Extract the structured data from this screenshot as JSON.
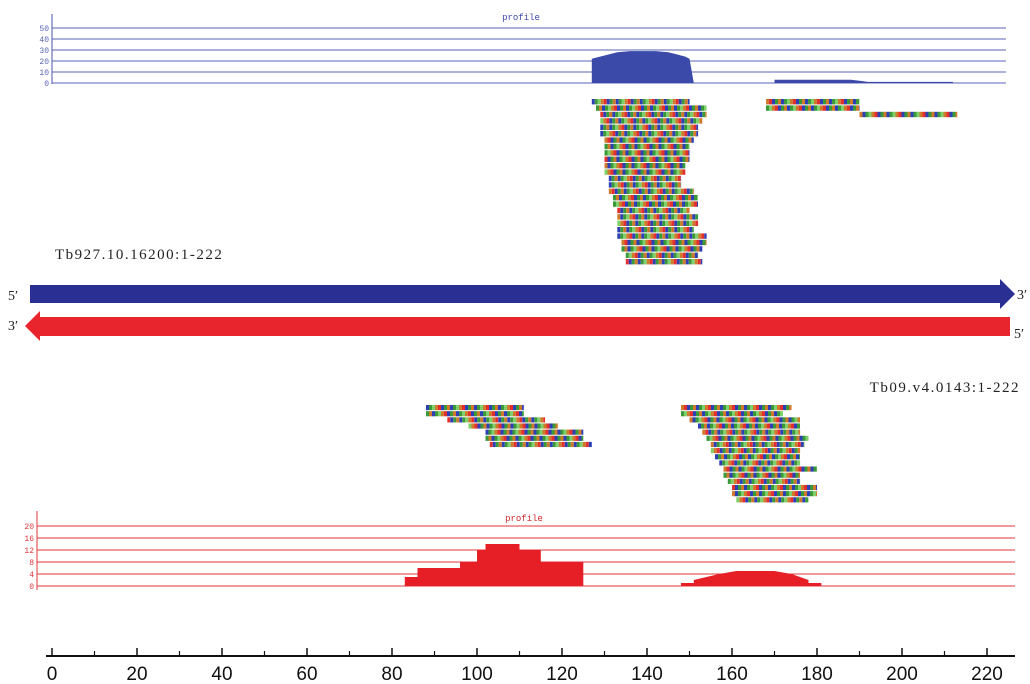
{
  "colors": {
    "forward": "#2a2f94",
    "reverse": "#e8252c",
    "profile_top_fill": "#3b4aa8",
    "profile_bottom_fill": "#e61e25",
    "base_a": "#3a9a3a",
    "base_c": "#2e3fb5",
    "base_g": "#cf7a2a",
    "base_t": "#e23030",
    "base_x": "#7fd06a"
  },
  "top_track": {
    "profile_label": "profile",
    "ticks": [
      "50",
      "40",
      "30",
      "20",
      "10",
      "0"
    ],
    "tick_values": [
      50,
      40,
      30,
      20,
      10,
      0
    ],
    "profile_points": [
      [
        127,
        0
      ],
      [
        127,
        22
      ],
      [
        130,
        25
      ],
      [
        133,
        28
      ],
      [
        136,
        29
      ],
      [
        139,
        29
      ],
      [
        142,
        29
      ],
      [
        145,
        28
      ],
      [
        147,
        26
      ],
      [
        149,
        24
      ],
      [
        150,
        22
      ],
      [
        151,
        0
      ],
      [
        151,
        0
      ],
      [
        170,
        0
      ],
      [
        170,
        3
      ],
      [
        188,
        3
      ],
      [
        190,
        2
      ],
      [
        192,
        1
      ],
      [
        212,
        1
      ],
      [
        212,
        0
      ]
    ],
    "reads": [
      {
        "start": 127,
        "end": 150,
        "row": 0
      },
      {
        "start": 168,
        "end": 190,
        "row": 0
      },
      {
        "start": 128,
        "end": 154,
        "row": 1
      },
      {
        "start": 168,
        "end": 190,
        "row": 1
      },
      {
        "start": 129,
        "end": 154,
        "row": 2
      },
      {
        "start": 190,
        "end": 213,
        "row": 2
      },
      {
        "start": 129,
        "end": 153,
        "row": 3
      },
      {
        "start": 129,
        "end": 152,
        "row": 4
      },
      {
        "start": 129,
        "end": 152,
        "row": 5
      },
      {
        "start": 130,
        "end": 151,
        "row": 6
      },
      {
        "start": 130,
        "end": 150,
        "row": 7
      },
      {
        "start": 130,
        "end": 150,
        "row": 8
      },
      {
        "start": 130,
        "end": 150,
        "row": 9
      },
      {
        "start": 130,
        "end": 149,
        "row": 10
      },
      {
        "start": 130,
        "end": 149,
        "row": 11
      },
      {
        "start": 131,
        "end": 148,
        "row": 12
      },
      {
        "start": 131,
        "end": 148,
        "row": 13
      },
      {
        "start": 131,
        "end": 151,
        "row": 14
      },
      {
        "start": 132,
        "end": 152,
        "row": 15
      },
      {
        "start": 132,
        "end": 152,
        "row": 16
      },
      {
        "start": 133,
        "end": 150,
        "row": 17
      },
      {
        "start": 133,
        "end": 152,
        "row": 18
      },
      {
        "start": 133,
        "end": 152,
        "row": 19
      },
      {
        "start": 133,
        "end": 151,
        "row": 20
      },
      {
        "start": 133,
        "end": 154,
        "row": 21
      },
      {
        "start": 134,
        "end": 154,
        "row": 22
      },
      {
        "start": 134,
        "end": 153,
        "row": 23
      },
      {
        "start": 135,
        "end": 152,
        "row": 24
      },
      {
        "start": 135,
        "end": 153,
        "row": 25
      }
    ]
  },
  "forward_gene": {
    "name": "Tb927.10.16200:1-222",
    "start_label": "5′",
    "end_label": "3′"
  },
  "reverse_gene": {
    "name": "Tb09.v4.0143:1-222",
    "start_label": "3′",
    "end_label": "5′"
  },
  "bottom_track": {
    "profile_label": "profile",
    "ticks": [
      "20",
      "16",
      "12",
      "8",
      "4",
      "0"
    ],
    "tick_values": [
      20,
      16,
      12,
      8,
      4,
      0
    ],
    "profile_points": [
      [
        83,
        0
      ],
      [
        83,
        3
      ],
      [
        86,
        3
      ],
      [
        86,
        6
      ],
      [
        96,
        6
      ],
      [
        96,
        8
      ],
      [
        100,
        8
      ],
      [
        100,
        12
      ],
      [
        102,
        12
      ],
      [
        102,
        14
      ],
      [
        110,
        14
      ],
      [
        110,
        12
      ],
      [
        115,
        12
      ],
      [
        115,
        8
      ],
      [
        125,
        8
      ],
      [
        125,
        0
      ],
      [
        148,
        0
      ],
      [
        148,
        1
      ],
      [
        151,
        1
      ],
      [
        151,
        2
      ],
      [
        154,
        3
      ],
      [
        157,
        4
      ],
      [
        161,
        5
      ],
      [
        170,
        5
      ],
      [
        174,
        4
      ],
      [
        176,
        3
      ],
      [
        178,
        2
      ],
      [
        178,
        1
      ],
      [
        181,
        1
      ],
      [
        181,
        0
      ]
    ],
    "reads": [
      {
        "start": 88,
        "end": 111,
        "row": 0
      },
      {
        "start": 148,
        "end": 174,
        "row": 0
      },
      {
        "start": 88,
        "end": 111,
        "row": 1
      },
      {
        "start": 148,
        "end": 172,
        "row": 1
      },
      {
        "start": 93,
        "end": 116,
        "row": 2
      },
      {
        "start": 150,
        "end": 176,
        "row": 2
      },
      {
        "start": 98,
        "end": 119,
        "row": 3
      },
      {
        "start": 152,
        "end": 176,
        "row": 3
      },
      {
        "start": 102,
        "end": 125,
        "row": 4
      },
      {
        "start": 153,
        "end": 176,
        "row": 4
      },
      {
        "start": 102,
        "end": 125,
        "row": 5
      },
      {
        "start": 154,
        "end": 178,
        "row": 5
      },
      {
        "start": 103,
        "end": 127,
        "row": 6
      },
      {
        "start": 155,
        "end": 177,
        "row": 6
      },
      {
        "start": 155,
        "end": 176,
        "row": 7
      },
      {
        "start": 156,
        "end": 176,
        "row": 8
      },
      {
        "start": 157,
        "end": 176,
        "row": 9
      },
      {
        "start": 158,
        "end": 180,
        "row": 10
      },
      {
        "start": 158,
        "end": 176,
        "row": 11
      },
      {
        "start": 159,
        "end": 176,
        "row": 12
      },
      {
        "start": 160,
        "end": 180,
        "row": 13
      },
      {
        "start": 160,
        "end": 180,
        "row": 14
      },
      {
        "start": 161,
        "end": 178,
        "row": 15
      }
    ]
  },
  "axis": {
    "ticks": [
      "0",
      "20",
      "40",
      "60",
      "80",
      "100",
      "120",
      "140",
      "160",
      "180",
      "200",
      "220"
    ],
    "tick_values": [
      0,
      20,
      40,
      60,
      80,
      100,
      120,
      140,
      160,
      180,
      200,
      220
    ],
    "min": 0,
    "max": 226
  }
}
